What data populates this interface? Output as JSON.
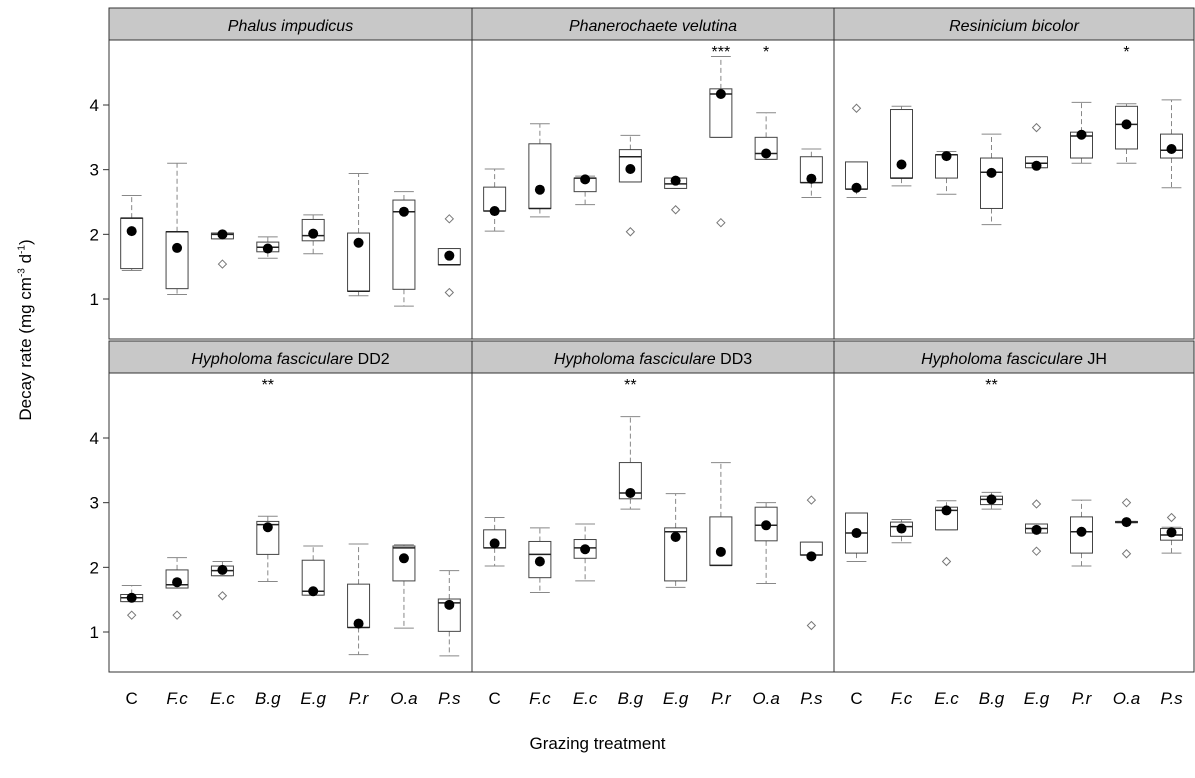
{
  "axes": {
    "ylabel_main": "Decay rate (mg cm",
    "ylabel_exp1": "-3",
    "ylabel_mid": " d",
    "ylabel_exp2": "-1",
    "ylabel_end": ")",
    "xlabel": "Grazing treatment"
  },
  "chart_data": {
    "type": "boxplot",
    "xlabel": "Grazing treatment",
    "ylabel": "Decay rate (mg cm-3 d-1)",
    "ylim": [
      0.5,
      5.0
    ],
    "yticks": [
      1,
      2,
      3,
      4
    ],
    "categories": [
      "C",
      "F.c",
      "E.c",
      "B.g",
      "E.g",
      "P.r",
      "O.a",
      "P.s"
    ],
    "category_italic": [
      false,
      true,
      true,
      true,
      true,
      true,
      true,
      true
    ],
    "layout": "2 rows x 3 columns of panels",
    "panels": [
      {
        "title": "Phalus impudicus",
        "title_italic": "Phalus impudicus",
        "title_suffix": "",
        "boxes": [
          {
            "q1": 1.47,
            "q3": 2.25,
            "wlo": 1.44,
            "whi": 2.6,
            "median": 2.25,
            "mean": 2.05,
            "outliers": []
          },
          {
            "q1": 1.16,
            "q3": 2.04,
            "wlo": 1.07,
            "whi": 3.1,
            "median": 2.04,
            "mean": 1.79,
            "outliers": []
          },
          {
            "q1": 1.93,
            "q3": 2.02,
            "wlo": 1.93,
            "whi": 2.02,
            "median": 2.0,
            "mean": 2.0,
            "outliers": [
              1.54
            ]
          },
          {
            "q1": 1.73,
            "q3": 1.88,
            "wlo": 1.63,
            "whi": 1.96,
            "median": 1.8,
            "mean": 1.78,
            "outliers": []
          },
          {
            "q1": 1.9,
            "q3": 2.23,
            "wlo": 1.7,
            "whi": 2.3,
            "median": 1.98,
            "mean": 2.01,
            "outliers": []
          },
          {
            "q1": 1.12,
            "q3": 2.02,
            "wlo": 1.05,
            "whi": 2.94,
            "median": 1.12,
            "mean": 1.87,
            "outliers": []
          },
          {
            "q1": 1.15,
            "q3": 2.53,
            "wlo": 0.89,
            "whi": 2.66,
            "median": 2.35,
            "mean": 2.35,
            "outliers": []
          },
          {
            "q1": 1.53,
            "q3": 1.78,
            "wlo": 1.53,
            "whi": 1.78,
            "median": 1.53,
            "mean": 1.67,
            "outliers": [
              1.1,
              2.24
            ]
          }
        ],
        "significance": []
      },
      {
        "title": "Phanerochaete velutina",
        "title_italic": "Phanerochaete velutina",
        "title_suffix": "",
        "boxes": [
          {
            "q1": 2.36,
            "q3": 2.73,
            "wlo": 2.05,
            "whi": 3.01,
            "median": 2.36,
            "mean": 2.36,
            "outliers": []
          },
          {
            "q1": 2.4,
            "q3": 3.4,
            "wlo": 2.27,
            "whi": 3.71,
            "median": 2.4,
            "mean": 2.69,
            "outliers": []
          },
          {
            "q1": 2.66,
            "q3": 2.87,
            "wlo": 2.46,
            "whi": 2.9,
            "median": 2.87,
            "mean": 2.85,
            "outliers": []
          },
          {
            "q1": 2.81,
            "q3": 3.31,
            "wlo": 2.81,
            "whi": 3.53,
            "median": 3.2,
            "mean": 3.01,
            "outliers": [
              2.04
            ]
          },
          {
            "q1": 2.71,
            "q3": 2.87,
            "wlo": 2.71,
            "whi": 2.87,
            "median": 2.78,
            "mean": 2.83,
            "outliers": [
              2.38
            ]
          },
          {
            "q1": 3.5,
            "q3": 4.25,
            "wlo": 3.5,
            "whi": 4.75,
            "median": 4.17,
            "mean": 4.17,
            "outliers": [
              2.18
            ]
          },
          {
            "q1": 3.16,
            "q3": 3.5,
            "wlo": 3.16,
            "whi": 3.88,
            "median": 3.25,
            "mean": 3.25,
            "outliers": []
          },
          {
            "q1": 2.8,
            "q3": 3.2,
            "wlo": 2.57,
            "whi": 3.32,
            "median": 2.8,
            "mean": 2.86,
            "outliers": []
          }
        ],
        "significance": [
          {
            "category": "P.r",
            "label": "***"
          },
          {
            "category": "O.a",
            "label": "*"
          }
        ]
      },
      {
        "title": "Resinicium bicolor",
        "title_italic": "Resinicium bicolor",
        "title_suffix": "",
        "boxes": [
          {
            "q1": 2.7,
            "q3": 3.12,
            "wlo": 2.57,
            "whi": 2.7,
            "median": 2.7,
            "mean": 2.72,
            "outliers": [
              3.95
            ]
          },
          {
            "q1": 2.87,
            "q3": 3.93,
            "wlo": 2.75,
            "whi": 3.98,
            "median": 2.87,
            "mean": 3.08,
            "outliers": []
          },
          {
            "q1": 2.87,
            "q3": 3.23,
            "wlo": 2.62,
            "whi": 3.28,
            "median": 3.23,
            "mean": 3.21,
            "outliers": []
          },
          {
            "q1": 2.4,
            "q3": 3.18,
            "wlo": 2.15,
            "whi": 3.55,
            "median": 2.96,
            "mean": 2.95,
            "outliers": []
          },
          {
            "q1": 3.03,
            "q3": 3.2,
            "wlo": 3.03,
            "whi": 3.2,
            "median": 3.1,
            "mean": 3.06,
            "outliers": [
              3.65
            ]
          },
          {
            "q1": 3.18,
            "q3": 3.58,
            "wlo": 3.1,
            "whi": 4.04,
            "median": 3.52,
            "mean": 3.54,
            "outliers": []
          },
          {
            "q1": 3.32,
            "q3": 3.98,
            "wlo": 3.1,
            "whi": 4.02,
            "median": 3.7,
            "mean": 3.7,
            "outliers": []
          },
          {
            "q1": 3.18,
            "q3": 3.55,
            "wlo": 2.72,
            "whi": 4.08,
            "median": 3.3,
            "mean": 3.32,
            "outliers": []
          }
        ],
        "significance": [
          {
            "category": "O.a",
            "label": "*"
          }
        ]
      },
      {
        "title": "Hypholoma fasciculare DD2",
        "title_italic": "Hypholoma fasciculare",
        "title_suffix": " DD2",
        "boxes": [
          {
            "q1": 1.47,
            "q3": 1.58,
            "wlo": 1.47,
            "whi": 1.72,
            "median": 1.53,
            "mean": 1.53,
            "outliers": [
              1.26
            ]
          },
          {
            "q1": 1.68,
            "q3": 1.96,
            "wlo": 1.68,
            "whi": 2.15,
            "median": 1.73,
            "mean": 1.77,
            "outliers": [
              1.26
            ]
          },
          {
            "q1": 1.87,
            "q3": 2.02,
            "wlo": 1.87,
            "whi": 2.09,
            "median": 1.95,
            "mean": 1.96,
            "outliers": [
              1.56
            ]
          },
          {
            "q1": 2.2,
            "q3": 2.71,
            "wlo": 1.78,
            "whi": 2.79,
            "median": 2.66,
            "mean": 2.62,
            "outliers": []
          },
          {
            "q1": 1.57,
            "q3": 2.11,
            "wlo": 1.57,
            "whi": 2.33,
            "median": 1.63,
            "mean": 1.63,
            "outliers": []
          },
          {
            "q1": 1.07,
            "q3": 1.74,
            "wlo": 0.65,
            "whi": 2.36,
            "median": 1.07,
            "mean": 1.13,
            "outliers": []
          },
          {
            "q1": 1.79,
            "q3": 2.33,
            "wlo": 1.06,
            "whi": 2.35,
            "median": 2.3,
            "mean": 2.14,
            "outliers": []
          },
          {
            "q1": 1.01,
            "q3": 1.51,
            "wlo": 0.63,
            "whi": 1.95,
            "median": 1.45,
            "mean": 1.42,
            "outliers": []
          }
        ],
        "significance": [
          {
            "category": "B.g",
            "label": "**"
          }
        ]
      },
      {
        "title": "Hypholoma fasciculare DD3",
        "title_italic": "Hypholoma fasciculare",
        "title_suffix": " DD3",
        "boxes": [
          {
            "q1": 2.3,
            "q3": 2.58,
            "wlo": 2.02,
            "whi": 2.77,
            "median": 2.3,
            "mean": 2.37,
            "outliers": []
          },
          {
            "q1": 1.84,
            "q3": 2.4,
            "wlo": 1.61,
            "whi": 2.61,
            "median": 2.2,
            "mean": 2.09,
            "outliers": []
          },
          {
            "q1": 2.14,
            "q3": 2.43,
            "wlo": 1.79,
            "whi": 2.67,
            "median": 2.3,
            "mean": 2.28,
            "outliers": []
          },
          {
            "q1": 3.06,
            "q3": 3.62,
            "wlo": 2.9,
            "whi": 4.33,
            "median": 3.15,
            "mean": 3.15,
            "outliers": []
          },
          {
            "q1": 1.79,
            "q3": 2.61,
            "wlo": 1.69,
            "whi": 3.14,
            "median": 2.55,
            "mean": 2.47,
            "outliers": []
          },
          {
            "q1": 2.03,
            "q3": 2.78,
            "wlo": 2.03,
            "whi": 3.62,
            "median": 2.03,
            "mean": 2.24,
            "outliers": []
          },
          {
            "q1": 2.41,
            "q3": 2.93,
            "wlo": 1.75,
            "whi": 3.0,
            "median": 2.65,
            "mean": 2.65,
            "outliers": []
          },
          {
            "q1": 2.19,
            "q3": 2.39,
            "wlo": 2.19,
            "whi": 2.39,
            "median": 2.19,
            "mean": 2.17,
            "outliers": [
              1.1,
              3.04
            ]
          }
        ],
        "significance": [
          {
            "category": "B.g",
            "label": "**"
          }
        ]
      },
      {
        "title": "Hypholoma fasciculare JH",
        "title_italic": "Hypholoma fasciculare",
        "title_suffix": " JH",
        "boxes": [
          {
            "q1": 2.22,
            "q3": 2.84,
            "wlo": 2.09,
            "whi": 2.84,
            "median": 2.53,
            "mean": 2.53,
            "outliers": []
          },
          {
            "q1": 2.48,
            "q3": 2.7,
            "wlo": 2.38,
            "whi": 2.74,
            "median": 2.63,
            "mean": 2.6,
            "outliers": []
          },
          {
            "q1": 2.58,
            "q3": 2.93,
            "wlo": 2.58,
            "whi": 3.03,
            "median": 2.88,
            "mean": 2.88,
            "outliers": [
              2.09
            ]
          },
          {
            "q1": 2.97,
            "q3": 3.1,
            "wlo": 2.9,
            "whi": 3.16,
            "median": 3.05,
            "mean": 3.05,
            "outliers": []
          },
          {
            "q1": 2.53,
            "q3": 2.67,
            "wlo": 2.53,
            "whi": 2.67,
            "median": 2.6,
            "mean": 2.58,
            "outliers": [
              2.25,
              2.98
            ]
          },
          {
            "q1": 2.22,
            "q3": 2.78,
            "wlo": 2.02,
            "whi": 3.04,
            "median": 2.55,
            "mean": 2.55,
            "outliers": []
          },
          {
            "q1": 2.69,
            "q3": 2.71,
            "wlo": 2.69,
            "whi": 2.71,
            "median": 2.7,
            "mean": 2.7,
            "outliers": [
              2.21,
              3.0
            ]
          },
          {
            "q1": 2.42,
            "q3": 2.6,
            "wlo": 2.22,
            "whi": 2.62,
            "median": 2.5,
            "mean": 2.54,
            "outliers": [
              2.77
            ]
          }
        ],
        "significance": [
          {
            "category": "B.g",
            "label": "**"
          }
        ]
      }
    ]
  }
}
